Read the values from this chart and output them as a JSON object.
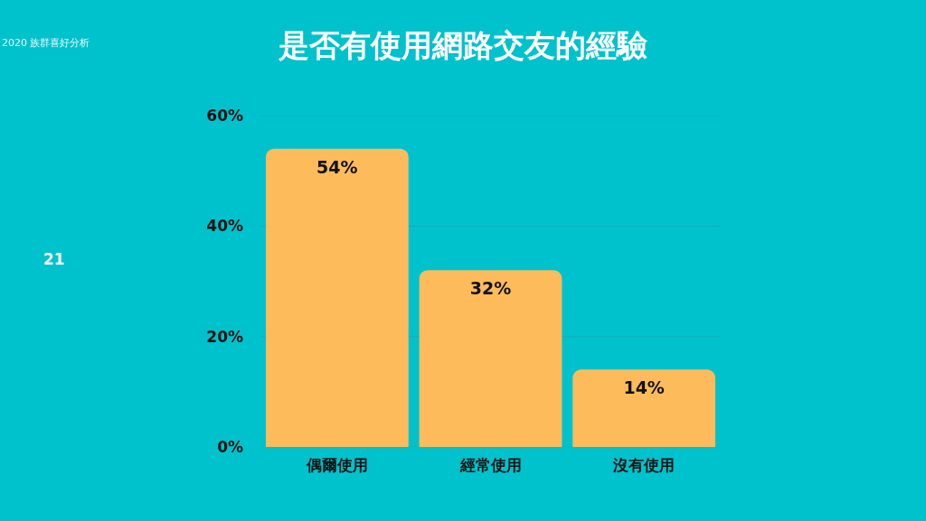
{
  "chart_data": {
    "type": "bar",
    "title": "是否有使用網路交友的經驗",
    "subtitle": "2020 族群喜好分析",
    "categories": [
      "偶爾使用",
      "經常使用",
      "沒有使用"
    ],
    "values": [
      54,
      32,
      14
    ],
    "color": "#fdbb5b",
    "value_labels": [
      "54%",
      "32%",
      "14%"
    ],
    "ylim": [
      0,
      60
    ],
    "yticks": [
      {
        "value": 0,
        "label": "0%"
      },
      {
        "value": 20,
        "label": "20%"
      },
      {
        "value": 40,
        "label": "40%"
      },
      {
        "value": 60,
        "label": "60%"
      }
    ],
    "grid": "y",
    "annotations": [
      "21"
    ]
  }
}
